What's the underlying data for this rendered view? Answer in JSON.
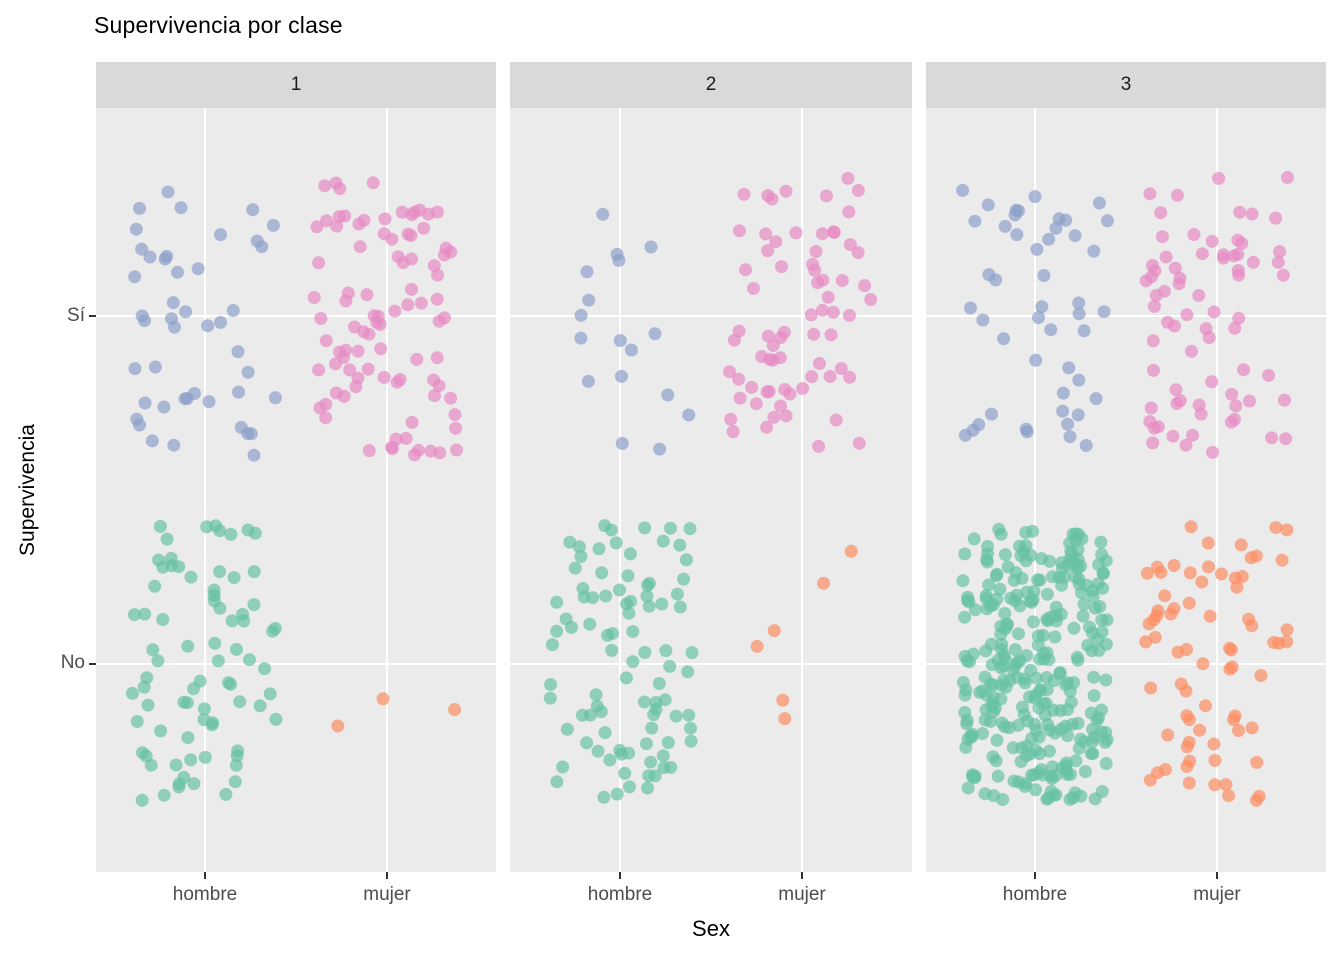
{
  "title": "Supervivencia por clase",
  "axes": {
    "x_title": "Sex",
    "y_title": "Supervivencia",
    "x_tick_labels": [
      "hombre",
      "mujer"
    ],
    "y_tick_labels": [
      "Sí",
      "No"
    ]
  },
  "facets": {
    "labels": [
      "1",
      "2",
      "3"
    ]
  },
  "colors": {
    "panel_bg": "#EBEBEB",
    "strip_bg": "#D9D9D9",
    "gridline": "#FFFFFF",
    "axis_text": "#4D4D4D",
    "tick_mark": "#333333",
    "hombre_si": "#8DA0CB",
    "mujer_si": "#E78AC3",
    "hombre_no": "#66C2A5",
    "mujer_no": "#FC8D62"
  },
  "chart_data": {
    "type": "scatter",
    "subtype": "jittered-categorical",
    "title": "Supervivencia por clase",
    "xlabel": "Sex",
    "ylabel": "Supervivencia",
    "facet_variable_values": [
      "1",
      "2",
      "3"
    ],
    "x_categories": [
      "hombre",
      "mujer"
    ],
    "y_categories_top_to_bottom": [
      "Sí",
      "No"
    ],
    "legend": "none",
    "grid": "major white gridlines at each category on gray panels",
    "point_alpha": 0.7,
    "point_radius_px": 6.5,
    "jitter_fraction_of_category_step": 0.4,
    "groups": [
      {
        "facet": "1",
        "sex": "hombre",
        "supervivencia": "Sí",
        "count": 45,
        "color": "#8DA0CB"
      },
      {
        "facet": "1",
        "sex": "mujer",
        "supervivencia": "Sí",
        "count": 91,
        "color": "#E78AC3"
      },
      {
        "facet": "1",
        "sex": "hombre",
        "supervivencia": "No",
        "count": 77,
        "color": "#66C2A5"
      },
      {
        "facet": "1",
        "sex": "mujer",
        "supervivencia": "No",
        "count": 3,
        "color": "#FC8D62"
      },
      {
        "facet": "2",
        "sex": "hombre",
        "supervivencia": "Sí",
        "count": 17,
        "color": "#8DA0CB"
      },
      {
        "facet": "2",
        "sex": "mujer",
        "supervivencia": "Sí",
        "count": 70,
        "color": "#E78AC3"
      },
      {
        "facet": "2",
        "sex": "hombre",
        "supervivencia": "No",
        "count": 91,
        "color": "#66C2A5"
      },
      {
        "facet": "2",
        "sex": "mujer",
        "supervivencia": "No",
        "count": 6,
        "color": "#FC8D62"
      },
      {
        "facet": "3",
        "sex": "hombre",
        "supervivencia": "Sí",
        "count": 47,
        "color": "#8DA0CB"
      },
      {
        "facet": "3",
        "sex": "mujer",
        "supervivencia": "Sí",
        "count": 72,
        "color": "#E78AC3"
      },
      {
        "facet": "3",
        "sex": "hombre",
        "supervivencia": "No",
        "count": 300,
        "color": "#66C2A5"
      },
      {
        "facet": "3",
        "sex": "mujer",
        "supervivencia": "No",
        "count": 72,
        "color": "#FC8D62"
      }
    ]
  }
}
